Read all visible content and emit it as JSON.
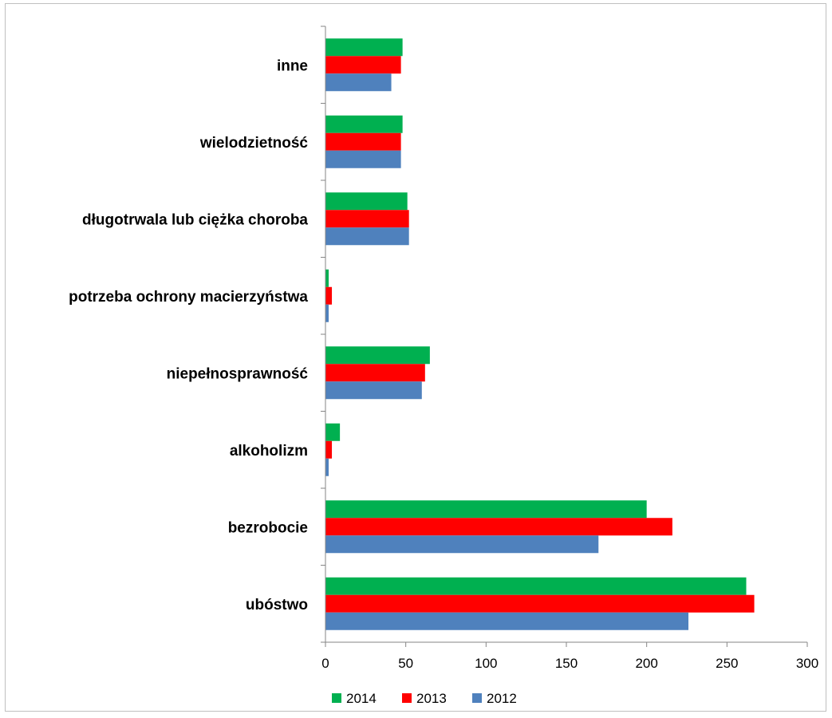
{
  "chart_data": {
    "type": "bar",
    "orientation": "horizontal",
    "categories": [
      "ubóstwo",
      "bezrobocie",
      "alkoholizm",
      "niepełnosprawność",
      "potrzeba ochrony macierzyństwa",
      "długotrwala lub ciężka choroba",
      "wielodzietność",
      "inne"
    ],
    "series": [
      {
        "name": "2012",
        "color": "#4f81bd",
        "values": [
          226,
          170,
          2,
          60,
          2,
          52,
          47,
          41
        ]
      },
      {
        "name": "2013",
        "color": "#ff0000",
        "values": [
          267,
          216,
          4,
          62,
          4,
          52,
          47,
          47
        ]
      },
      {
        "name": "2014",
        "color": "#00b050",
        "values": [
          262,
          200,
          9,
          65,
          2,
          51,
          48,
          48
        ]
      }
    ],
    "xlim": [
      0,
      300
    ],
    "xticks": [
      "0",
      "50",
      "100",
      "150",
      "200",
      "250",
      "300"
    ],
    "grid": false,
    "legend_position": "bottom",
    "legend_order": [
      "2014",
      "2013",
      "2012"
    ]
  }
}
